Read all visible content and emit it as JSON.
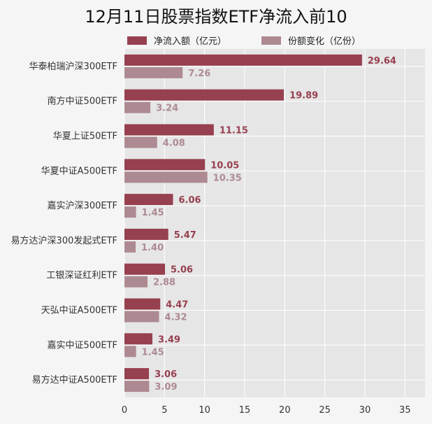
{
  "colors": {
    "net_inflow": "#97404f",
    "share_change": "#ad8a92",
    "plot_bg": "#e6e6e6",
    "grid": "#ffffff"
  },
  "chart_data": {
    "type": "bar",
    "orientation": "horizontal",
    "title": "12月11日股票指数ETF净流入前10",
    "xlabel": "",
    "ylabel": "",
    "xlim": [
      0,
      37.5
    ],
    "xticks": [
      0,
      5,
      10,
      15,
      20,
      25,
      30,
      35
    ],
    "grid": true,
    "legend_position": "top",
    "categories": [
      "华泰柏瑞沪深300ETF",
      "南方中证500ETF",
      "华夏上证50ETF",
      "华夏中证A500ETF",
      "嘉实沪深300ETF",
      "易方达沪深300发起式ETF",
      "工银深证红利ETF",
      "天弘中证A500ETF",
      "嘉实中证500ETF",
      "易方达中证A500ETF"
    ],
    "series": [
      {
        "name": "净流入额（亿元）",
        "values": [
          29.64,
          19.89,
          11.15,
          10.05,
          6.06,
          5.47,
          5.06,
          4.47,
          3.49,
          3.06
        ]
      },
      {
        "name": "份额变化（亿份）",
        "values": [
          7.26,
          3.24,
          4.08,
          10.35,
          1.45,
          1.4,
          2.88,
          4.32,
          1.45,
          3.09
        ]
      }
    ]
  }
}
